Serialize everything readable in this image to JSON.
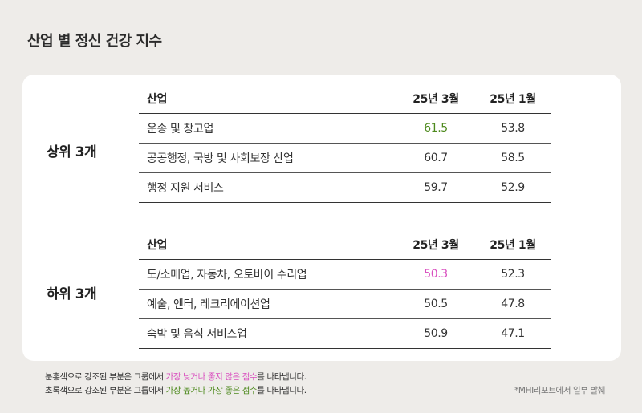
{
  "title": "산업 별 정신 건강 지수",
  "top": {
    "label": "상위 3개",
    "headers": [
      "산업",
      "25년 3월",
      "25년 1월"
    ],
    "rows": [
      {
        "industry": "운송 및 창고업",
        "mar25": "61.5",
        "jan25": "53.8"
      },
      {
        "industry": "공공행정, 국방 및 사회보장 산업",
        "mar25": "60.7",
        "jan25": "58.5"
      },
      {
        "industry": "행정 지원 서비스",
        "mar25": "59.7",
        "jan25": "52.9"
      }
    ]
  },
  "bottom": {
    "label": "하위 3개",
    "headers": [
      "산업",
      "25년 3월",
      "25년 1월"
    ],
    "rows": [
      {
        "industry": "도/소매업, 자동차, 오토바이 수리업",
        "mar25": "50.3",
        "jan25": "52.3"
      },
      {
        "industry": "예술, 엔터, 레크리에이션업",
        "mar25": "50.5",
        "jan25": "47.8"
      },
      {
        "industry": "숙박 및 음식 서비스업",
        "mar25": "50.9",
        "jan25": "47.1"
      }
    ]
  },
  "notes": {
    "pink": {
      "before": "분홍색으로 강조된 부분은 그룹에서 ",
      "highlight": "가장 낮거나 좋지 않은 점수",
      "after": "를 나타냅니다."
    },
    "green": {
      "before": "초록색으로 강조된 부분은 그룹에서 ",
      "highlight1": "가장 높거나",
      "middle": " ",
      "highlight2": "가장 좋은 점수",
      "after": "를 나타냅니다."
    }
  },
  "source": "*MHI리포트에서 일부 발췌",
  "colors": {
    "background": "#eeece9",
    "card": "#ffffff",
    "green_highlight": "#4e8a1e",
    "pink_highlight": "#d94fbf"
  }
}
